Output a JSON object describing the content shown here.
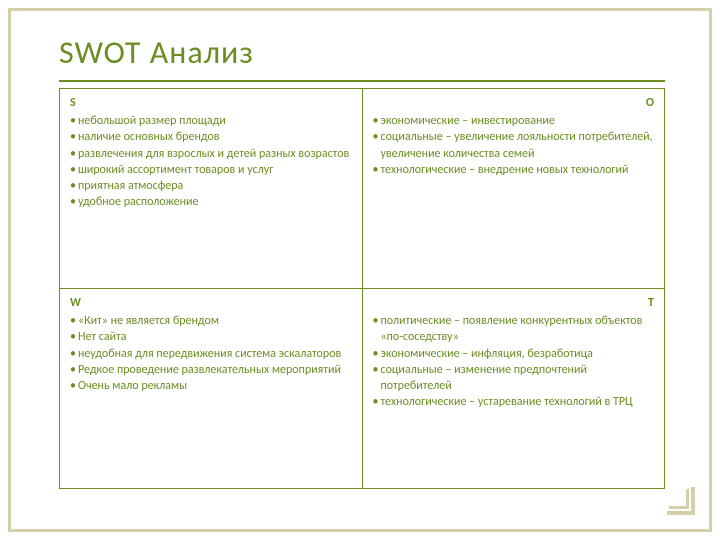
{
  "title": "SWOT Анализ",
  "colors": {
    "accent": "#6b8e23",
    "frame": "#d4d0a8",
    "background": "#ffffff"
  },
  "typography": {
    "title_fontsize": 32,
    "cell_fontsize": 12,
    "font_family": "Calibri"
  },
  "layout": {
    "rows": 2,
    "cols": 2,
    "cell_border_color": "#6b8e23"
  },
  "quadrants": {
    "s": {
      "left_label": "S",
      "right_label": "",
      "items": [
        "небольшой размер площади",
        "наличие основных брендов",
        "развлечения для взрослых и детей разных возрастов",
        "широкий ассортимент товаров и услуг",
        "приятная атмосфера",
        "удобное расположение"
      ]
    },
    "o": {
      "left_label": "",
      "right_label": "O",
      "items": [
        "экономические – инвестирование",
        "социальные – увеличение лояльности потребителей, увеличение количества семей",
        "технологические – внедрение новых технологий"
      ]
    },
    "w": {
      "left_label": "W",
      "right_label": "",
      "items": [
        "«Кит» не является брендом",
        "Нет сайта",
        "неудобная для передвижения система эскалаторов",
        "Редкое проведение развлекательных мероприятий",
        "Очень мало рекламы"
      ]
    },
    "t": {
      "left_label": "",
      "right_label": "T",
      "items": [
        "политические – появление конкурентных объектов «по-соседству»",
        "экономические – инфляция, безработица",
        "социальные – изменение предпочтений потребителей",
        "технологические – устаревание технологий в ТРЦ"
      ]
    }
  }
}
